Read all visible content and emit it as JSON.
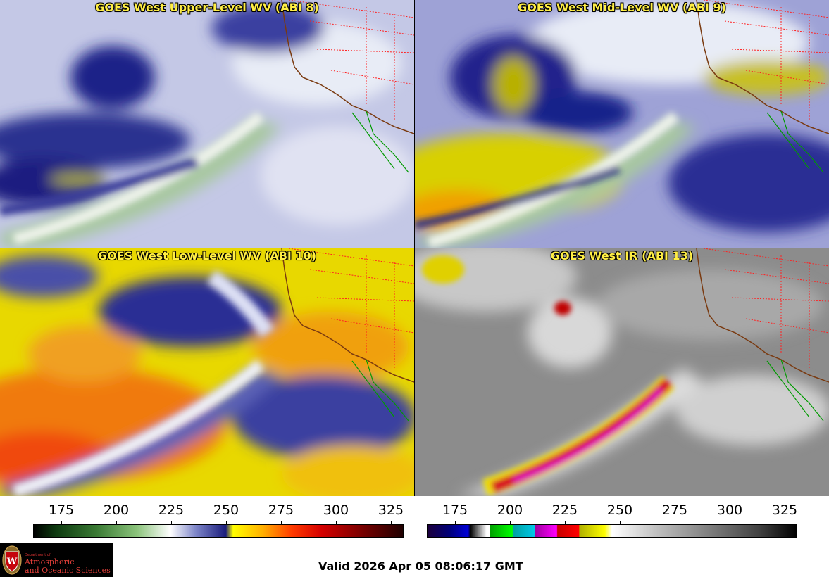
{
  "panels": {
    "upper_wv": {
      "title": "GOES West Upper-Level WV (ABI 8)"
    },
    "mid_wv": {
      "title": "GOES West Mid-Level WV (ABI 9)"
    },
    "low_wv": {
      "title": "GOES West Low-Level WV (ABI 10)"
    },
    "ir": {
      "title": "GOES West IR (ABI 13)"
    }
  },
  "colorbars": {
    "wv": {
      "ticks": [
        "175",
        "200",
        "225",
        "250",
        "275",
        "300",
        "325"
      ]
    },
    "ir": {
      "ticks": [
        "175",
        "200",
        "225",
        "250",
        "275",
        "300",
        "325"
      ]
    }
  },
  "logo": {
    "small_text": "Department of",
    "line1": "Atmospheric",
    "line2": "and Oceanic Sciences",
    "icon": "uw-seal-icon"
  },
  "valid_time": "Valid 2026 Apr 05 08:06:17 GMT",
  "colors": {
    "title": "#ffee44",
    "coastline": "#7a3a10",
    "state_borders": "#ff2020",
    "mexico_border": "#009a00"
  }
}
